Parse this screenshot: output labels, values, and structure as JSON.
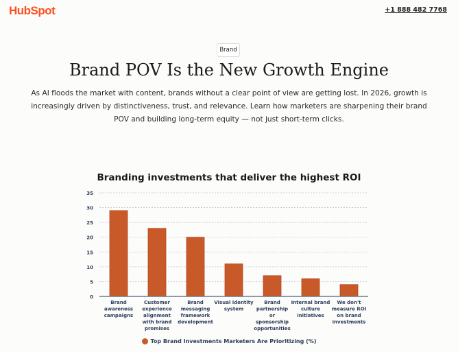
{
  "header": {
    "logo": "HubSpot",
    "phone": "+1 888 482 7768"
  },
  "tag": "Brand",
  "title": "Brand POV Is the New Growth Engine",
  "description": "As AI floods the market with content, brands without a clear point of view are getting lost. In 2026, growth is increasingly driven by distinctiveness, trust, and relevance. Learn how marketers are sharpening their brand POV and building long-term equity — not just short-term clicks.",
  "chart_data": {
    "type": "bar",
    "title": "Branding investments that deliver the highest ROI",
    "categories": [
      [
        "Brand",
        "awareness",
        "campaigns"
      ],
      [
        "Customer",
        "experience",
        "alignment",
        "with brand",
        "promises"
      ],
      [
        "Brand",
        "messaging",
        "framework",
        "development"
      ],
      [
        "Visual identity",
        "system"
      ],
      [
        "Brand",
        "partnership",
        "or",
        "sponsorship",
        "opportunities"
      ],
      [
        "Internal brand",
        "culture",
        "initiatives"
      ],
      [
        "We don't",
        "measure ROI",
        "on brand",
        "investments"
      ]
    ],
    "series": [
      {
        "name": "Top Brand Investments Marketers Are Prioritizing (%)",
        "values": [
          29,
          23,
          20,
          11,
          7,
          6,
          4
        ]
      }
    ],
    "ylim": [
      0,
      35
    ],
    "yticks": [
      0,
      5,
      10,
      15,
      20,
      25,
      30,
      35
    ],
    "grid": true,
    "legend": "bottom",
    "bar_color": "#c85a2a"
  }
}
